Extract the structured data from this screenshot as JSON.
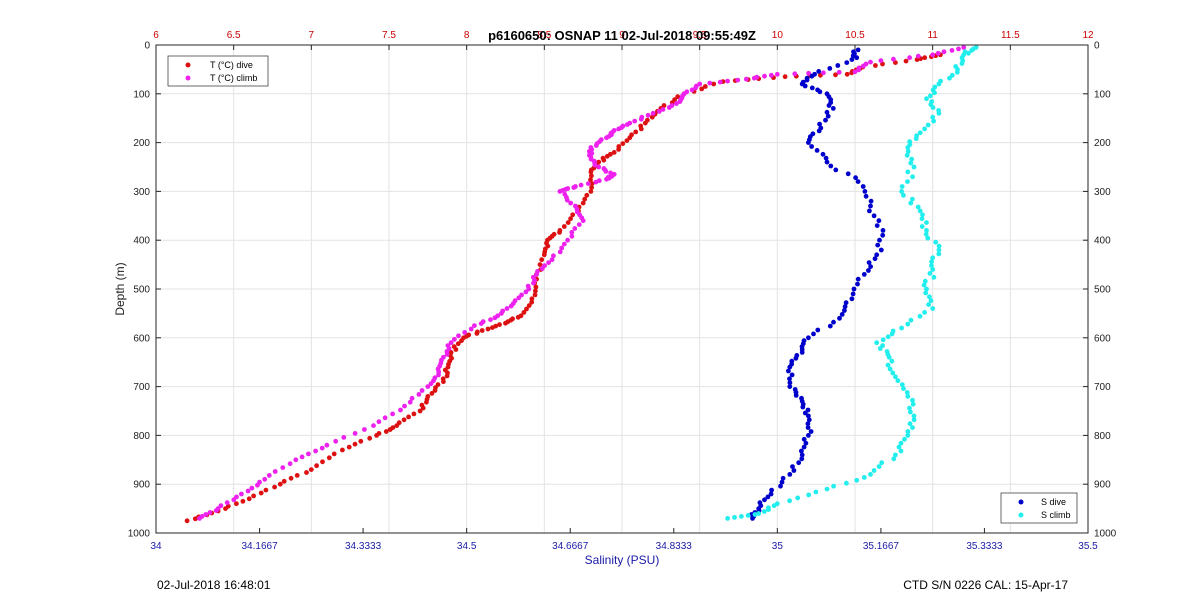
{
  "chart_data": {
    "type": "scatter",
    "title": "p6160650: OSNAP 11 02-Jul-2018 09:55:49Z",
    "ylabel": "Depth (m)",
    "xlabel_bottom": "Salinity (PSU)",
    "ylim": [
      0,
      1000
    ],
    "y_reversed": true,
    "xlim_bottom": [
      34,
      35.5
    ],
    "xlim_top": [
      6,
      12
    ],
    "top_tick_labels": [
      "6",
      "6.5",
      "7",
      "7.5",
      "8",
      "8.5",
      "9",
      "9.5",
      "10",
      "10.5",
      "11",
      "11.5",
      "12"
    ],
    "bottom_tick_labels": [
      "34",
      "34.1667",
      "34.3333",
      "34.5",
      "34.6667",
      "34.8333",
      "35",
      "35.1667",
      "35.3333",
      "35.5"
    ],
    "y_tick_labels": [
      "0",
      "100",
      "200",
      "300",
      "400",
      "500",
      "600",
      "700",
      "800",
      "900",
      "1000"
    ],
    "grid": true,
    "legends": [
      {
        "position": "top-left",
        "entries": [
          "T (°C) dive",
          "T (°C) climb"
        ]
      },
      {
        "position": "bottom-right",
        "entries": [
          "S dive",
          "S climb"
        ]
      }
    ],
    "series": [
      {
        "name": "T (°C) dive",
        "axis": "top",
        "color": "#dd1111",
        "points": [
          [
            11.05,
            20
          ],
          [
            10.9,
            30
          ],
          [
            10.55,
            45
          ],
          [
            10.45,
            60
          ],
          [
            10.05,
            65
          ],
          [
            9.65,
            75
          ],
          [
            9.4,
            100
          ],
          [
            9.25,
            130
          ],
          [
            9.15,
            160
          ],
          [
            9.05,
            190
          ],
          [
            8.95,
            220
          ],
          [
            8.85,
            240
          ],
          [
            8.8,
            260
          ],
          [
            8.8,
            300
          ],
          [
            8.72,
            340
          ],
          [
            8.6,
            380
          ],
          [
            8.52,
            400
          ],
          [
            8.5,
            430
          ],
          [
            8.45,
            480
          ],
          [
            8.42,
            520
          ],
          [
            8.35,
            555
          ],
          [
            8.25,
            570
          ],
          [
            8.1,
            585
          ],
          [
            7.98,
            600
          ],
          [
            7.9,
            630
          ],
          [
            7.88,
            660
          ],
          [
            7.85,
            690
          ],
          [
            7.75,
            720
          ],
          [
            7.7,
            750
          ],
          [
            7.55,
            780
          ],
          [
            7.42,
            800
          ],
          [
            7.2,
            830
          ],
          [
            7.0,
            870
          ],
          [
            6.8,
            900
          ],
          [
            6.6,
            930
          ],
          [
            6.4,
            955
          ],
          [
            6.2,
            975
          ]
        ]
      },
      {
        "name": "T (°C) climb",
        "axis": "top",
        "color": "#ee22ee",
        "points": [
          [
            11.2,
            5
          ],
          [
            11.0,
            20
          ],
          [
            10.6,
            35
          ],
          [
            10.5,
            55
          ],
          [
            10.0,
            60
          ],
          [
            9.8,
            70
          ],
          [
            9.5,
            80
          ],
          [
            9.4,
            100
          ],
          [
            9.35,
            120
          ],
          [
            9.2,
            140
          ],
          [
            9.05,
            160
          ],
          [
            8.95,
            175
          ],
          [
            8.9,
            190
          ],
          [
            8.8,
            210
          ],
          [
            8.8,
            230
          ],
          [
            8.85,
            250
          ],
          [
            8.95,
            265
          ],
          [
            8.9,
            275
          ],
          [
            8.7,
            290
          ],
          [
            8.6,
            300
          ],
          [
            8.7,
            330
          ],
          [
            8.75,
            360
          ],
          [
            8.65,
            400
          ],
          [
            8.55,
            440
          ],
          [
            8.45,
            470
          ],
          [
            8.4,
            500
          ],
          [
            8.3,
            530
          ],
          [
            8.2,
            555
          ],
          [
            8.05,
            575
          ],
          [
            7.9,
            610
          ],
          [
            7.85,
            640
          ],
          [
            7.82,
            670
          ],
          [
            7.75,
            700
          ],
          [
            7.6,
            740
          ],
          [
            7.4,
            780
          ],
          [
            7.1,
            820
          ],
          [
            6.9,
            850
          ],
          [
            6.7,
            890
          ],
          [
            6.55,
            920
          ],
          [
            6.4,
            950
          ],
          [
            6.28,
            970
          ]
        ]
      },
      {
        "name": "S dive",
        "axis": "bottom",
        "color": "#0000cc",
        "points": [
          [
            35.13,
            10
          ],
          [
            35.12,
            30
          ],
          [
            35.06,
            60
          ],
          [
            35.04,
            80
          ],
          [
            35.08,
            100
          ],
          [
            35.09,
            130
          ],
          [
            35.07,
            170
          ],
          [
            35.05,
            200
          ],
          [
            35.08,
            240
          ],
          [
            35.13,
            280
          ],
          [
            35.15,
            330
          ],
          [
            35.17,
            380
          ],
          [
            35.16,
            430
          ],
          [
            35.14,
            470
          ],
          [
            35.12,
            520
          ],
          [
            35.1,
            560
          ],
          [
            35.05,
            600
          ],
          [
            35.04,
            630
          ],
          [
            35.02,
            660
          ],
          [
            35.02,
            700
          ],
          [
            35.04,
            730
          ],
          [
            35.05,
            760
          ],
          [
            35.05,
            800
          ],
          [
            35.04,
            840
          ],
          [
            35.02,
            880
          ],
          [
            34.99,
            920
          ],
          [
            34.97,
            950
          ],
          [
            34.96,
            970
          ]
        ]
      },
      {
        "name": "S climb",
        "axis": "bottom",
        "color": "#22eeee",
        "points": [
          [
            35.32,
            5
          ],
          [
            35.3,
            20
          ],
          [
            35.29,
            50
          ],
          [
            35.26,
            80
          ],
          [
            35.24,
            110
          ],
          [
            35.26,
            140
          ],
          [
            35.23,
            180
          ],
          [
            35.21,
            210
          ],
          [
            35.22,
            250
          ],
          [
            35.2,
            300
          ],
          [
            35.23,
            340
          ],
          [
            35.24,
            380
          ],
          [
            35.26,
            420
          ],
          [
            35.25,
            460
          ],
          [
            35.24,
            500
          ],
          [
            35.25,
            540
          ],
          [
            35.2,
            580
          ],
          [
            35.16,
            610
          ],
          [
            35.18,
            640
          ],
          [
            35.19,
            680
          ],
          [
            35.21,
            720
          ],
          [
            35.22,
            760
          ],
          [
            35.21,
            800
          ],
          [
            35.19,
            840
          ],
          [
            35.15,
            880
          ],
          [
            35.08,
            910
          ],
          [
            35.0,
            940
          ],
          [
            34.97,
            960
          ],
          [
            34.92,
            970
          ]
        ]
      }
    ]
  },
  "footer": {
    "datetime": "02-Jul-2018 16:48:01",
    "cal": "CTD S/N 0226  CAL: 15-Apr-17"
  },
  "colors": {
    "top_axis": "#cc0000",
    "bottom_axis": "#1a1aa6",
    "grid": "#e3e3e3"
  }
}
